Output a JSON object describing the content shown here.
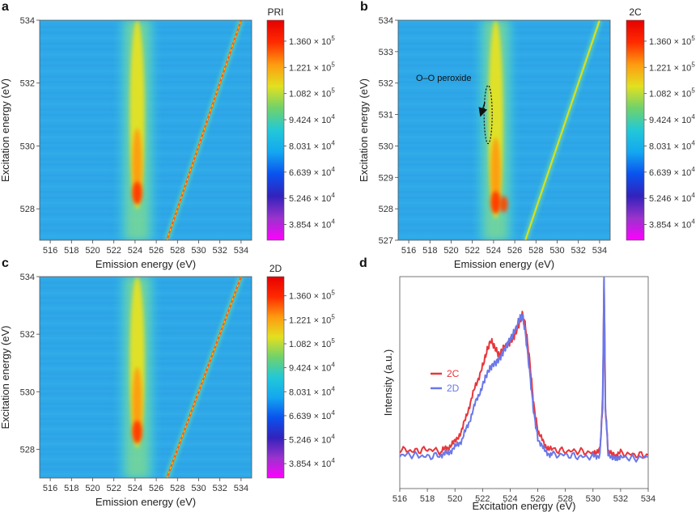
{
  "colorbar": {
    "colors": [
      "#ff00ff",
      "#9a33cc",
      "#3322bb",
      "#0a52ee",
      "#14a7f0",
      "#22c8d8",
      "#6fd26c",
      "#e3e020",
      "#ff9a10",
      "#ff2a00",
      "#e60000"
    ],
    "ticks": [
      {
        "base": "3.854",
        "exp": "4"
      },
      {
        "base": "5.246",
        "exp": "4"
      },
      {
        "base": "6.639",
        "exp": "4"
      },
      {
        "base": "8.031",
        "exp": "4"
      },
      {
        "base": "9.424",
        "exp": "4"
      },
      {
        "base": "1.082",
        "exp": "5"
      },
      {
        "base": "1.221",
        "exp": "5"
      },
      {
        "base": "1.360",
        "exp": "5"
      }
    ],
    "times_ten": "× 10"
  },
  "chart_data": [
    {
      "id": "a",
      "type": "heatmap",
      "panel_label": "a",
      "colorbar_title": "PRI",
      "xlabel": "Emission energy (eV)",
      "ylabel": "Excitation energy (eV)",
      "xlim": [
        515,
        535
      ],
      "ylim": [
        527,
        534
      ],
      "xticks": [
        "516",
        "518",
        "520",
        "522",
        "524",
        "526",
        "528",
        "530",
        "532",
        "534"
      ],
      "xtick_values": [
        516,
        518,
        520,
        522,
        524,
        526,
        528,
        530,
        532,
        534
      ],
      "yticks": [
        "528",
        "530",
        "532",
        "534"
      ],
      "ytick_values": [
        528,
        530,
        532,
        534
      ],
      "feature": {
        "emission_center": 524.2,
        "peak_excitation": 528.5,
        "diagonal": true
      }
    },
    {
      "id": "b",
      "type": "heatmap",
      "panel_label": "b",
      "colorbar_title": "2C",
      "xlabel": "Emission energy (eV)",
      "ylabel": "Excitation energy (eV)",
      "xlim": [
        515,
        535
      ],
      "ylim": [
        527,
        534
      ],
      "xticks": [
        "516",
        "518",
        "520",
        "522",
        "524",
        "526",
        "528",
        "530",
        "532",
        "534"
      ],
      "xtick_values": [
        516,
        518,
        520,
        522,
        524,
        526,
        528,
        530,
        532,
        534
      ],
      "yticks": [
        "527",
        "528",
        "529",
        "530",
        "531",
        "532",
        "533",
        "534"
      ],
      "ytick_values": [
        527,
        528,
        529,
        530,
        531,
        532,
        533,
        534
      ],
      "feature": {
        "emission_center": 524.2,
        "peak_excitation": 528.2,
        "diagonal": true
      },
      "annotation": {
        "text": "O–O peroxide",
        "ellipse_center": [
          522.8,
          531.0
        ],
        "ellipse_radii": [
          0.35,
          1.1
        ],
        "arrow_from": [
          521.5,
          531.8
        ],
        "arrow_to": [
          522.5,
          531.2
        ]
      }
    },
    {
      "id": "c",
      "type": "heatmap",
      "panel_label": "c",
      "colorbar_title": "2D",
      "xlabel": "Emission energy (eV)",
      "ylabel": "Excitation energy (eV)",
      "xlim": [
        515,
        535
      ],
      "ylim": [
        527,
        534
      ],
      "xticks": [
        "516",
        "518",
        "520",
        "522",
        "524",
        "526",
        "528",
        "530",
        "532",
        "534"
      ],
      "xtick_values": [
        516,
        518,
        520,
        522,
        524,
        526,
        528,
        530,
        532,
        534
      ],
      "yticks": [
        "528",
        "530",
        "532",
        "534"
      ],
      "ytick_values": [
        528,
        530,
        532,
        534
      ],
      "feature": {
        "emission_center": 524.2,
        "peak_excitation": 528.6,
        "diagonal": true
      }
    },
    {
      "id": "d",
      "type": "line",
      "panel_label": "d",
      "xlabel": "Excitation energy (eV)",
      "ylabel": "Intensity (a.u.)",
      "xlim": [
        516,
        534
      ],
      "ylim": [
        0,
        1.0
      ],
      "xticks": [
        "516",
        "518",
        "520",
        "522",
        "524",
        "526",
        "528",
        "530",
        "532",
        "534"
      ],
      "xtick_values": [
        516,
        518,
        520,
        522,
        524,
        526,
        528,
        530,
        532,
        534
      ],
      "legend_position": "center-left",
      "series": [
        {
          "name": "2C",
          "color": "#e8363b",
          "x": [
            516,
            517,
            518,
            519,
            519.5,
            520,
            520.5,
            521,
            521.5,
            522,
            522.3,
            522.6,
            522.9,
            523.2,
            523.5,
            523.8,
            524.1,
            524.4,
            524.7,
            524.9,
            525.1,
            525.4,
            525.7,
            526,
            526.5,
            527,
            528,
            529,
            530,
            530.5,
            530.7,
            530.8,
            530.9,
            531.1,
            531.5,
            532,
            533,
            534
          ],
          "y": [
            0.08,
            0.07,
            0.08,
            0.07,
            0.09,
            0.12,
            0.18,
            0.3,
            0.42,
            0.52,
            0.6,
            0.66,
            0.62,
            0.58,
            0.62,
            0.64,
            0.66,
            0.7,
            0.76,
            0.8,
            0.74,
            0.56,
            0.32,
            0.18,
            0.1,
            0.08,
            0.07,
            0.07,
            0.06,
            0.08,
            0.3,
            0.98,
            0.3,
            0.07,
            0.05,
            0.06,
            0.05,
            0.05
          ]
        },
        {
          "name": "2D",
          "color": "#6b78e8",
          "x": [
            516,
            517,
            518,
            519,
            519.5,
            520,
            520.5,
            521,
            521.5,
            522,
            522.3,
            522.6,
            522.9,
            523.2,
            523.5,
            523.8,
            524.1,
            524.4,
            524.7,
            524.9,
            525.1,
            525.4,
            525.7,
            526,
            526.5,
            527,
            528,
            529,
            530,
            530.5,
            530.7,
            530.8,
            530.9,
            531.1,
            531.5,
            532,
            533,
            534
          ],
          "y": [
            0.05,
            0.05,
            0.04,
            0.05,
            0.06,
            0.09,
            0.13,
            0.22,
            0.33,
            0.42,
            0.48,
            0.52,
            0.54,
            0.56,
            0.6,
            0.64,
            0.68,
            0.72,
            0.78,
            0.79,
            0.7,
            0.5,
            0.28,
            0.14,
            0.07,
            0.05,
            0.05,
            0.04,
            0.04,
            0.05,
            0.35,
            1.0,
            0.3,
            0.05,
            0.03,
            0.04,
            0.03,
            0.04
          ]
        }
      ]
    }
  ]
}
